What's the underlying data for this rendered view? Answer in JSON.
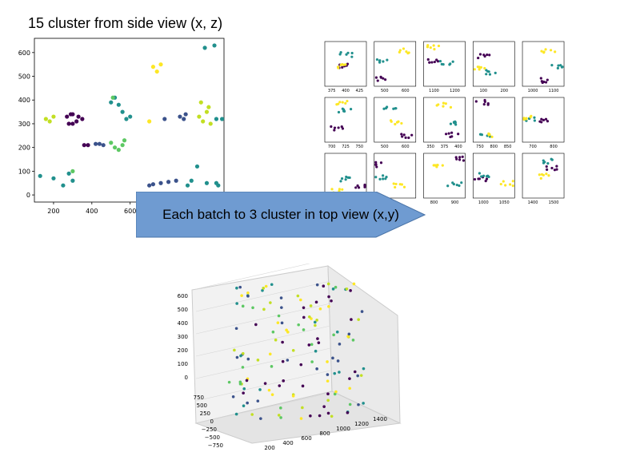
{
  "title": "15 cluster from side view (x, z)",
  "arrow_label": "Each batch to 3 cluster in top view (x,y)",
  "colors": {
    "c0": "#440154",
    "c1": "#3b528b",
    "c2": "#21908d",
    "c3": "#5dc863",
    "c4": "#c2df23",
    "c5": "#fde725",
    "arrow": "#6f9bd1"
  },
  "chart_data": [
    {
      "type": "scatter",
      "title": "",
      "xlabel": "",
      "ylabel": "",
      "xlim": [
        100,
        1090
      ],
      "ylim": [
        -30,
        660
      ],
      "xticks": [
        200,
        400,
        600,
        800
      ],
      "yticks": [
        0,
        100,
        200,
        300,
        400,
        500,
        600
      ],
      "series": [
        {
          "color": "#440154",
          "points": [
            [
              270,
              330
            ],
            [
              280,
              300
            ],
            [
              300,
              340
            ],
            [
              320,
              310
            ],
            [
              330,
              330
            ],
            [
              350,
              320
            ],
            [
              360,
              210
            ],
            [
              380,
              210
            ],
            [
              300,
              300
            ],
            [
              290,
              340
            ]
          ]
        },
        {
          "color": "#3b528b",
          "points": [
            [
              420,
              215
            ],
            [
              440,
              215
            ],
            [
              460,
              210
            ],
            [
              700,
              40
            ],
            [
              720,
              45
            ],
            [
              760,
              50
            ],
            [
              800,
              55
            ],
            [
              840,
              60
            ],
            [
              860,
              330
            ],
            [
              880,
              320
            ],
            [
              890,
              340
            ],
            [
              780,
              320
            ]
          ]
        },
        {
          "color": "#21908d",
          "points": [
            [
              130,
              80
            ],
            [
              200,
              70
            ],
            [
              250,
              40
            ],
            [
              280,
              90
            ],
            [
              300,
              60
            ],
            [
              500,
              390
            ],
            [
              520,
              410
            ],
            [
              540,
              380
            ],
            [
              560,
              350
            ],
            [
              580,
              320
            ],
            [
              600,
              330
            ],
            [
              900,
              40
            ],
            [
              920,
              60
            ],
            [
              950,
              120
            ],
            [
              1000,
              50
            ],
            [
              1050,
              50
            ],
            [
              1060,
              40
            ],
            [
              990,
              620
            ],
            [
              1040,
              630
            ],
            [
              1050,
              320
            ],
            [
              1080,
              320
            ]
          ]
        },
        {
          "color": "#5dc863",
          "points": [
            [
              500,
              220
            ],
            [
              520,
              200
            ],
            [
              540,
              190
            ],
            [
              560,
              210
            ],
            [
              570,
              230
            ],
            [
              510,
              410
            ],
            [
              300,
              100
            ]
          ]
        },
        {
          "color": "#c2df23",
          "points": [
            [
              160,
              320
            ],
            [
              180,
              310
            ],
            [
              200,
              330
            ],
            [
              960,
              330
            ],
            [
              980,
              310
            ],
            [
              1000,
              350
            ],
            [
              1010,
              370
            ],
            [
              1020,
              300
            ],
            [
              970,
              390
            ]
          ]
        },
        {
          "color": "#fde725",
          "points": [
            [
              720,
              540
            ],
            [
              740,
              520
            ],
            [
              760,
              550
            ],
            [
              700,
              310
            ]
          ]
        }
      ]
    },
    {
      "type": "scatter",
      "title": "",
      "panels": 15,
      "panel_ticks": [
        [
          "375",
          "400",
          "425"
        ],
        [
          "500",
          "600"
        ],
        [
          "1100",
          "1200"
        ],
        [
          "100",
          "200"
        ],
        [
          "1000",
          "1100"
        ],
        [
          "700",
          "725",
          "750"
        ],
        [
          "500",
          "600"
        ],
        [
          "350",
          "375",
          "400"
        ],
        [
          "750",
          "800",
          "850"
        ],
        [
          "700",
          "800"
        ],
        [],
        [],
        [
          "800",
          "900"
        ],
        [
          "1000",
          "1050"
        ],
        [
          "1400",
          "1500"
        ]
      ]
    },
    {
      "type": "scatter",
      "title": "",
      "projection": "3d",
      "x_ticks": [
        "200",
        "400",
        "600",
        "800",
        "1000",
        "1200",
        "1400"
      ],
      "y_ticks": [
        "750",
        "500",
        "250",
        "0",
        "−250",
        "−500",
        "−750"
      ],
      "z_ticks": [
        "0",
        "100",
        "200",
        "300",
        "400",
        "500",
        "600"
      ]
    }
  ]
}
